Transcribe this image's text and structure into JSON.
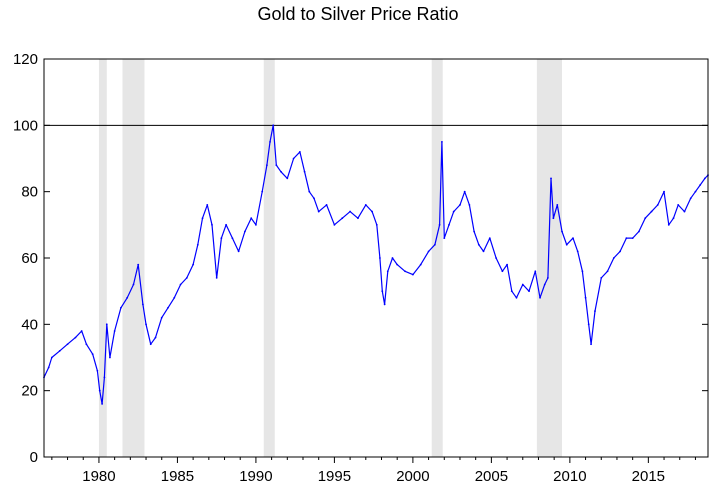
{
  "chart_data": {
    "type": "line",
    "title": "Gold to Silver Price Ratio",
    "xlabel": "",
    "ylabel": "",
    "xlim": [
      1976.5,
      2018.8
    ],
    "ylim": [
      0,
      120
    ],
    "yticks": [
      0,
      20,
      40,
      60,
      80,
      100,
      120
    ],
    "xticks": [
      1980,
      1985,
      1990,
      1995,
      2000,
      2005,
      2010,
      2015
    ],
    "reference_line": 100,
    "grid": false,
    "legend": "none",
    "colors": {
      "series": "#0000ff",
      "recession": "#e6e6e6",
      "reference": "#000000"
    },
    "recession_bands": [
      {
        "start": 1980.0,
        "end": 1980.5
      },
      {
        "start": 1981.5,
        "end": 1982.9
      },
      {
        "start": 1990.5,
        "end": 1991.2
      },
      {
        "start": 2001.2,
        "end": 2001.9
      },
      {
        "start": 2007.9,
        "end": 2009.5
      }
    ],
    "series": [
      {
        "x": [
          1976.5,
          1976.8,
          1977.0,
          1977.5,
          1978.0,
          1978.5,
          1978.9,
          1979.2,
          1979.6,
          1979.9,
          1980.05,
          1980.2,
          1980.35,
          1980.5,
          1980.7,
          1981.0,
          1981.4,
          1981.8,
          1982.2,
          1982.5,
          1982.8,
          1983.0,
          1983.3,
          1983.6,
          1984.0,
          1984.4,
          1984.8,
          1985.2,
          1985.6,
          1986.0,
          1986.3,
          1986.6,
          1986.9,
          1987.2,
          1987.5,
          1987.8,
          1988.1,
          1988.5,
          1988.9,
          1989.3,
          1989.7,
          1990.0,
          1990.4,
          1990.7,
          1990.9,
          1991.1,
          1991.3,
          1991.6,
          1992.0,
          1992.4,
          1992.8,
          1993.1,
          1993.4,
          1993.7,
          1994.0,
          1994.5,
          1995.0,
          1995.5,
          1996.0,
          1996.5,
          1997.0,
          1997.4,
          1997.7,
          1997.9,
          1998.05,
          1998.2,
          1998.4,
          1998.7,
          1999.0,
          1999.5,
          2000.0,
          2000.5,
          2001.0,
          2001.4,
          2001.7,
          2001.85,
          2002.0,
          2002.3,
          2002.6,
          2003.0,
          2003.3,
          2003.6,
          2003.9,
          2004.2,
          2004.5,
          2004.9,
          2005.3,
          2005.7,
          2006.0,
          2006.3,
          2006.6,
          2007.0,
          2007.4,
          2007.8,
          2008.1,
          2008.4,
          2008.6,
          2008.8,
          2008.95,
          2009.2,
          2009.5,
          2009.8,
          2010.2,
          2010.5,
          2010.8,
          2011.0,
          2011.2,
          2011.35,
          2011.6,
          2012.0,
          2012.4,
          2012.8,
          2013.2,
          2013.6,
          2014.0,
          2014.4,
          2014.8,
          2015.2,
          2015.6,
          2016.0,
          2016.3,
          2016.6,
          2016.9,
          2017.3,
          2017.7,
          2018.0,
          2018.3,
          2018.6,
          2018.8
        ],
        "y": [
          24,
          27,
          30,
          32,
          34,
          36,
          38,
          34,
          31,
          26,
          20,
          16,
          24,
          40,
          30,
          38,
          45,
          48,
          52,
          58,
          46,
          40,
          34,
          36,
          42,
          45,
          48,
          52,
          54,
          58,
          64,
          72,
          76,
          70,
          54,
          66,
          70,
          66,
          62,
          68,
          72,
          70,
          80,
          88,
          95,
          100,
          88,
          86,
          84,
          90,
          92,
          86,
          80,
          78,
          74,
          76,
          70,
          72,
          74,
          72,
          76,
          74,
          70,
          60,
          50,
          46,
          56,
          60,
          58,
          56,
          55,
          58,
          62,
          64,
          70,
          95,
          66,
          70,
          74,
          76,
          80,
          76,
          68,
          64,
          62,
          66,
          60,
          56,
          58,
          50,
          48,
          52,
          50,
          56,
          48,
          52,
          54,
          84,
          72,
          76,
          68,
          64,
          66,
          62,
          56,
          48,
          40,
          34,
          44,
          54,
          56,
          60,
          62,
          66,
          66,
          68,
          72,
          74,
          76,
          80,
          70,
          72,
          76,
          74,
          78,
          80,
          82,
          84,
          85
        ]
      }
    ]
  }
}
